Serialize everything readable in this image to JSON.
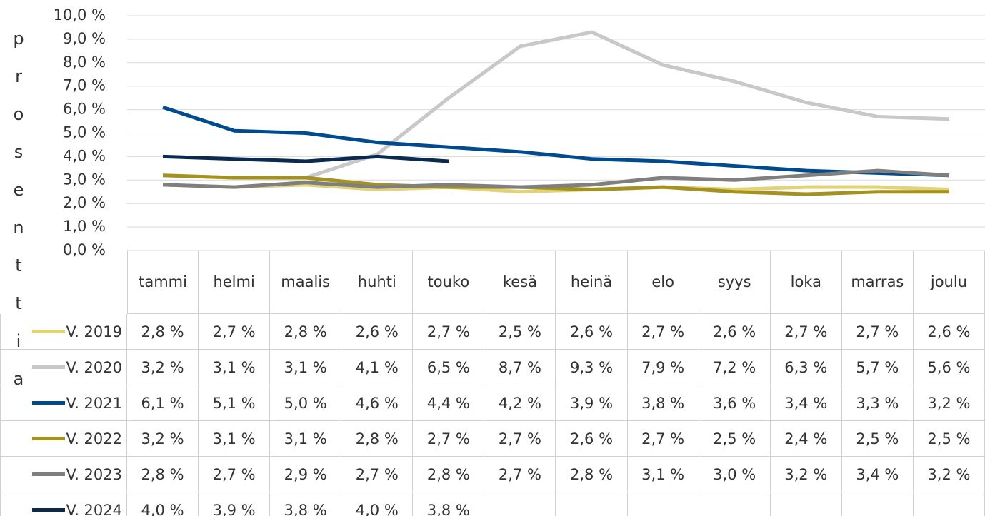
{
  "chart_data": {
    "type": "line",
    "y_label": "prosenttia",
    "categories": [
      "tammi",
      "helmi",
      "maalis",
      "huhti",
      "touko",
      "kesä",
      "heinä",
      "elo",
      "syys",
      "loka",
      "marras",
      "joulu"
    ],
    "ylim": [
      0,
      10
    ],
    "yticks": [
      {
        "value": 0,
        "label": "0,0 %"
      },
      {
        "value": 1,
        "label": "1,0 %"
      },
      {
        "value": 2,
        "label": "2,0 %"
      },
      {
        "value": 3,
        "label": "3,0 %"
      },
      {
        "value": 4,
        "label": "4,0 %"
      },
      {
        "value": 5,
        "label": "5,0 %"
      },
      {
        "value": 6,
        "label": "6,0 %"
      },
      {
        "value": 7,
        "label": "7,0 %"
      },
      {
        "value": 8,
        "label": "8,0 %"
      },
      {
        "value": 9,
        "label": "9,0 %"
      },
      {
        "value": 10,
        "label": "10,0 %"
      }
    ],
    "grid": true,
    "series": [
      {
        "name": "V. 2019",
        "color": "#e2d27a",
        "values": [
          2.8,
          2.7,
          2.8,
          2.6,
          2.7,
          2.5,
          2.6,
          2.7,
          2.6,
          2.7,
          2.7,
          2.6
        ],
        "value_labels": [
          "2,8 %",
          "2,7 %",
          "2,8 %",
          "2,6 %",
          "2,7 %",
          "2,5 %",
          "2,6 %",
          "2,7 %",
          "2,6 %",
          "2,7 %",
          "2,7 %",
          "2,6 %"
        ]
      },
      {
        "name": "V. 2020",
        "color": "#c8c8c8",
        "values": [
          3.2,
          3.1,
          3.1,
          4.1,
          6.5,
          8.7,
          9.3,
          7.9,
          7.2,
          6.3,
          5.7,
          5.6
        ],
        "value_labels": [
          "3,2 %",
          "3,1 %",
          "3,1 %",
          "4,1 %",
          "6,5 %",
          "8,7 %",
          "9,3 %",
          "7,9 %",
          "7,2 %",
          "6,3 %",
          "5,7 %",
          "5,6 %"
        ]
      },
      {
        "name": "V. 2021",
        "color": "#004a8f",
        "values": [
          6.1,
          5.1,
          5.0,
          4.6,
          4.4,
          4.2,
          3.9,
          3.8,
          3.6,
          3.4,
          3.3,
          3.2
        ],
        "value_labels": [
          "6,1 %",
          "5,1 %",
          "5,0 %",
          "4,6 %",
          "4,4 %",
          "4,2 %",
          "3,9 %",
          "3,8 %",
          "3,6 %",
          "3,4 %",
          "3,3 %",
          "3,2 %"
        ]
      },
      {
        "name": "V. 2022",
        "color": "#a3921f",
        "values": [
          3.2,
          3.1,
          3.1,
          2.8,
          2.7,
          2.7,
          2.6,
          2.7,
          2.5,
          2.4,
          2.5,
          2.5
        ],
        "value_labels": [
          "3,2 %",
          "3,1 %",
          "3,1 %",
          "2,8 %",
          "2,7 %",
          "2,7 %",
          "2,6 %",
          "2,7 %",
          "2,5 %",
          "2,4 %",
          "2,5 %",
          "2,5 %"
        ]
      },
      {
        "name": "V. 2023",
        "color": "#7f7f7f",
        "values": [
          2.8,
          2.7,
          2.9,
          2.7,
          2.8,
          2.7,
          2.8,
          3.1,
          3.0,
          3.2,
          3.4,
          3.2
        ],
        "value_labels": [
          "2,8 %",
          "2,7 %",
          "2,9 %",
          "2,7 %",
          "2,8 %",
          "2,7 %",
          "2,8 %",
          "3,1 %",
          "3,0 %",
          "3,2 %",
          "3,4 %",
          "3,2 %"
        ]
      },
      {
        "name": "V. 2024",
        "color": "#0b2a50",
        "values": [
          4.0,
          3.9,
          3.8,
          4.0,
          3.8,
          null,
          null,
          null,
          null,
          null,
          null,
          null
        ],
        "value_labels": [
          "4,0 %",
          "3,9 %",
          "3,8 %",
          "4,0 %",
          "3,8 %",
          null,
          null,
          null,
          null,
          null,
          null,
          null
        ]
      }
    ]
  }
}
